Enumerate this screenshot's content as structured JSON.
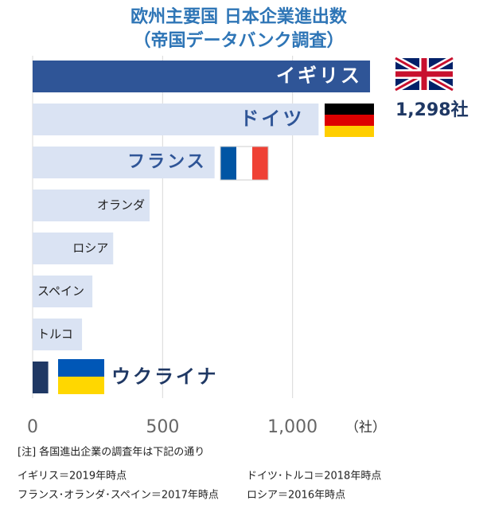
{
  "chart_data": {
    "type": "bar",
    "orientation": "horizontal",
    "title": "欧州主要国  日本企業進出数",
    "subtitle": "（帝国データバンク調査）",
    "categories": [
      "イギリス",
      "ドイツ",
      "フランス",
      "オランダ",
      "ロシア",
      "スペイン",
      "トルコ",
      "ウクライナ"
    ],
    "values": [
      1298,
      1100,
      700,
      450,
      310,
      230,
      190,
      60
    ],
    "value_labels": [
      "1,298社",
      null,
      null,
      null,
      null,
      null,
      null,
      null
    ],
    "colors": [
      "#2f5597",
      "#dae3f3",
      "#dae3f3",
      "#dae3f3",
      "#dae3f3",
      "#dae3f3",
      "#dae3f3",
      "#1f3864"
    ],
    "xlim": [
      0,
      1500
    ],
    "xticks": [
      0,
      500,
      {
        "value": 1000,
        "label": "1,000"
      }
    ],
    "x_unit": "（社）",
    "grid": true,
    "notes": [
      "[注] 各国進出企業の調査年は下記の通り",
      "イギリス＝2019年時点",
      "ドイツ･トルコ＝2018年時点",
      "フランス･オランダ･スペイン＝2017年時点",
      "ロシア＝2016年時点"
    ]
  }
}
